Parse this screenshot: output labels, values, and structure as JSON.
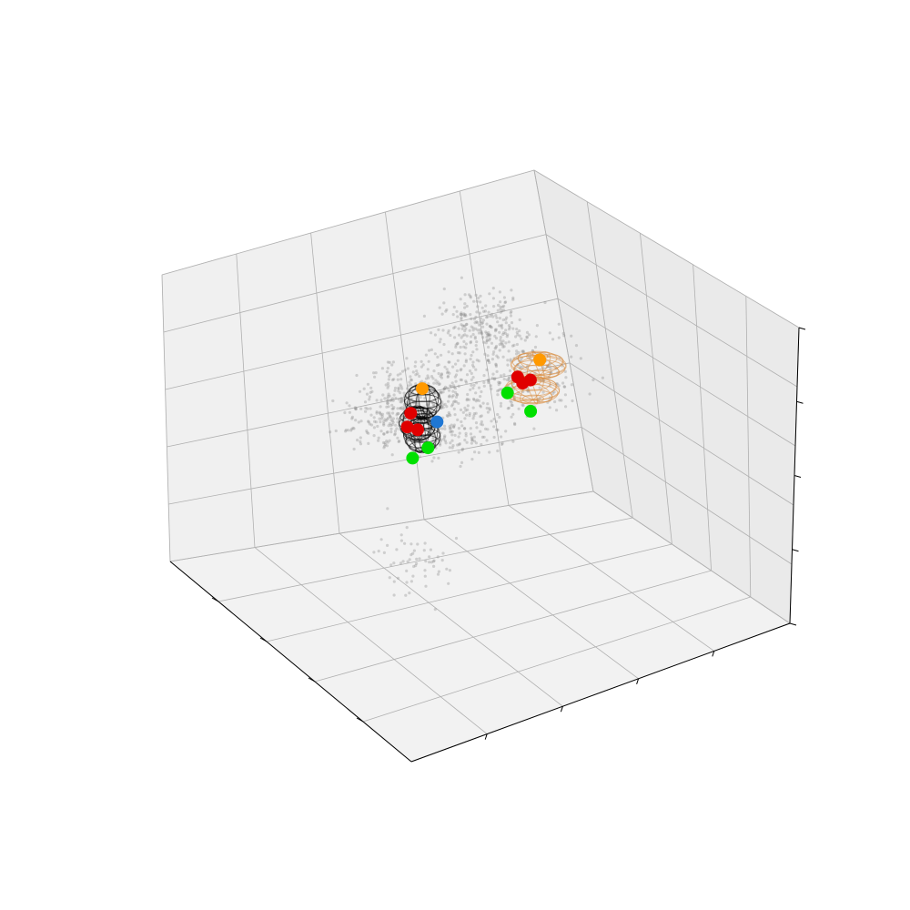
{
  "chart_data": {
    "type": "scatter",
    "projection": "3d",
    "title": "",
    "xlabel": "",
    "ylabel": "",
    "zlabel": "",
    "tick_labels": "none",
    "grid": true,
    "colors": {
      "pane_back": "#f0f0f0",
      "pane_side": "#eaeaea",
      "pane_floor": "#f2f2f2",
      "point_cloud": "#8c8c8c",
      "keypoint_red": "#e00000",
      "keypoint_green": "#00e000",
      "keypoint_blue": "#1f77d4",
      "keypoint_orange": "#ff9900",
      "ellipsoid_black": "#000000",
      "ellipsoid_orange": "#d98c40"
    },
    "series": [
      {
        "kind": "points",
        "color": "#8c8c8c",
        "alpha": 0.35,
        "clusters": [
          {
            "x": 0.3,
            "y": 0.45,
            "z": 0.72,
            "spread": 0.06,
            "count": 260
          },
          {
            "x": 0.45,
            "y": 0.5,
            "z": 0.6,
            "spread": 0.05,
            "count": 140
          },
          {
            "x": 0.6,
            "y": 0.55,
            "z": 0.8,
            "spread": 0.07,
            "count": 170
          },
          {
            "x": 0.85,
            "y": 0.9,
            "z": 0.42,
            "spread": 0.06,
            "count": 150
          },
          {
            "x": 0.7,
            "y": 0.82,
            "z": 0.7,
            "spread": 0.05,
            "count": 130
          },
          {
            "x": 0.05,
            "y": 0.15,
            "z": 0.9,
            "spread": 0.05,
            "count": 120
          },
          {
            "x": 0.15,
            "y": 0.05,
            "z": 1.02,
            "spread": 0.05,
            "count": 100
          },
          {
            "x": 0.2,
            "y": 0.3,
            "z": 0.35,
            "spread": 0.05,
            "count": 60
          }
        ]
      },
      {
        "kind": "keypoints",
        "points": [
          {
            "x": 0.32,
            "y": 0.44,
            "z": 0.78,
            "color": "#ff9900"
          },
          {
            "x": 0.3,
            "y": 0.46,
            "z": 0.7,
            "color": "#e00000"
          },
          {
            "x": 0.29,
            "y": 0.46,
            "z": 0.66,
            "color": "#e00000"
          },
          {
            "x": 0.31,
            "y": 0.45,
            "z": 0.65,
            "color": "#e00000"
          },
          {
            "x": 0.36,
            "y": 0.45,
            "z": 0.66,
            "color": "#1f77d4"
          },
          {
            "x": 0.34,
            "y": 0.46,
            "z": 0.58,
            "color": "#00e000"
          },
          {
            "x": 0.3,
            "y": 0.46,
            "z": 0.56,
            "color": "#00e000"
          },
          {
            "x": 0.82,
            "y": 0.88,
            "z": 0.44,
            "color": "#e00000"
          },
          {
            "x": 0.82,
            "y": 0.9,
            "z": 0.45,
            "color": "#e00000"
          },
          {
            "x": 0.86,
            "y": 0.92,
            "z": 0.42,
            "color": "#e00000"
          },
          {
            "x": 0.92,
            "y": 0.98,
            "z": 0.44,
            "color": "#ff9900"
          },
          {
            "x": 0.78,
            "y": 0.88,
            "z": 0.42,
            "color": "#00e000"
          },
          {
            "x": 0.82,
            "y": 0.86,
            "z": 0.36,
            "color": "#00e000"
          }
        ]
      },
      {
        "kind": "ellipsoids",
        "items": [
          {
            "x": 0.32,
            "y": 0.44,
            "z": 0.74,
            "rx": 0.04,
            "ry": 0.04,
            "rz": 0.05,
            "color": "#000000"
          },
          {
            "x": 0.31,
            "y": 0.45,
            "z": 0.67,
            "rx": 0.04,
            "ry": 0.04,
            "rz": 0.05,
            "color": "#000000"
          },
          {
            "x": 0.32,
            "y": 0.45,
            "z": 0.63,
            "rx": 0.04,
            "ry": 0.04,
            "rz": 0.05,
            "color": "#000000"
          },
          {
            "x": 0.85,
            "y": 0.9,
            "z": 0.4,
            "rx": 0.06,
            "ry": 0.06,
            "rz": 0.03,
            "color": "#d98c40"
          },
          {
            "x": 0.91,
            "y": 0.97,
            "z": 0.43,
            "rx": 0.06,
            "ry": 0.06,
            "rz": 0.03,
            "color": "#d98c40"
          }
        ]
      }
    ]
  }
}
